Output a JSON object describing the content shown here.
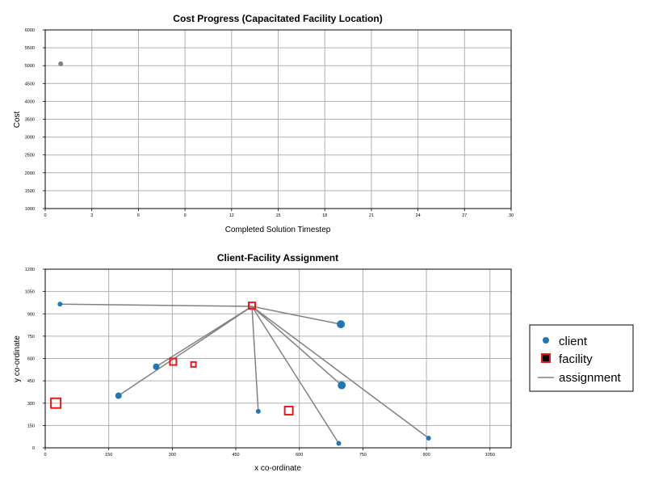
{
  "chart_data": [
    {
      "type": "scatter",
      "title": "Cost Progress (Capacitated Facility Location)",
      "xlabel": "Completed Solution Timestep",
      "ylabel": "Cost",
      "xlim": [
        0,
        30
      ],
      "ylim": [
        1000,
        6000
      ],
      "grid": true,
      "x_ticks": [
        "0",
        "3",
        "6",
        "9",
        "12",
        "15",
        "18",
        "21",
        "24",
        "27",
        "30"
      ],
      "y_ticks": [
        "1000",
        "1500",
        "2000",
        "2500",
        "3000",
        "3500",
        "4000",
        "4500",
        "5000",
        "5500",
        "6000"
      ],
      "point_color": "#808080",
      "points": [
        {
          "x": 1,
          "y": 5050
        }
      ]
    },
    {
      "type": "scatter",
      "title": "Client-Facility Assignment",
      "xlabel": "x co-ordinate",
      "ylabel": "y co-ordinate",
      "xlim": [
        0,
        1100
      ],
      "ylim": [
        0,
        1200
      ],
      "grid": true,
      "x_ticks": [
        "0",
        "150",
        "300",
        "450",
        "600",
        "750",
        "900",
        "1050"
      ],
      "y_ticks": [
        "0",
        "150",
        "300",
        "450",
        "600",
        "750",
        "900",
        "1050",
        "1200"
      ],
      "client_color": "#1f77b4",
      "facility_color": "#e41a1c",
      "assignment_color": "#808080",
      "clients": [
        {
          "x": 35,
          "y": 965,
          "size": 3
        },
        {
          "x": 173,
          "y": 350,
          "size": 4
        },
        {
          "x": 262,
          "y": 545,
          "size": 4
        },
        {
          "x": 503,
          "y": 245,
          "size": 3
        },
        {
          "x": 698,
          "y": 830,
          "size": 5
        },
        {
          "x": 700,
          "y": 420,
          "size": 5
        },
        {
          "x": 693,
          "y": 30,
          "size": 3
        },
        {
          "x": 905,
          "y": 65,
          "size": 3
        }
      ],
      "facilities": [
        {
          "x": 25,
          "y": 300,
          "size": 12
        },
        {
          "x": 302,
          "y": 578,
          "size": 8
        },
        {
          "x": 350,
          "y": 560,
          "size": 6
        },
        {
          "x": 488,
          "y": 955,
          "size": 8
        },
        {
          "x": 575,
          "y": 250,
          "size": 10
        }
      ],
      "assignments": [
        {
          "from": [
            35,
            965
          ],
          "to": [
            488,
            950
          ]
        },
        {
          "from": [
            173,
            350
          ],
          "to": [
            488,
            950
          ]
        },
        {
          "from": [
            262,
            545
          ],
          "to": [
            488,
            950
          ]
        },
        {
          "from": [
            503,
            245
          ],
          "to": [
            488,
            950
          ]
        },
        {
          "from": [
            698,
            830
          ],
          "to": [
            488,
            950
          ]
        },
        {
          "from": [
            700,
            420
          ],
          "to": [
            488,
            950
          ]
        },
        {
          "from": [
            693,
            30
          ],
          "to": [
            488,
            950
          ]
        },
        {
          "from": [
            905,
            65
          ],
          "to": [
            488,
            950
          ]
        }
      ],
      "legend": {
        "position": "right",
        "entries": [
          {
            "label": "client",
            "kind": "client"
          },
          {
            "label": "facility",
            "kind": "facility"
          },
          {
            "label": "assignment",
            "kind": "assignment"
          }
        ]
      }
    }
  ]
}
